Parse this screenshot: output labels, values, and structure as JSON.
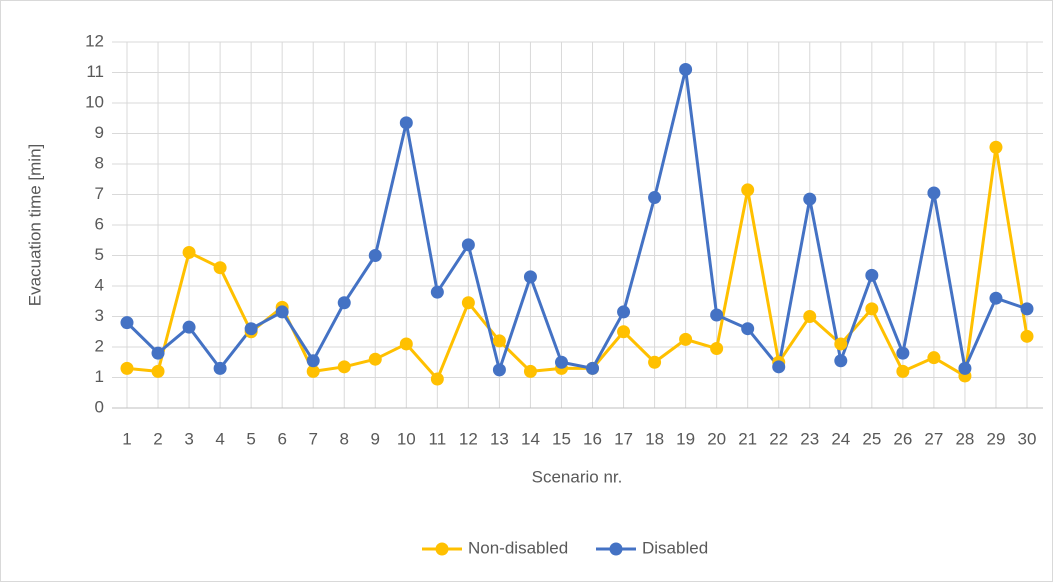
{
  "chart_data": {
    "type": "line",
    "x_label": "Scenario nr.",
    "y_label": "Evacuation time [min]",
    "categories": [
      "1",
      "2",
      "3",
      "4",
      "5",
      "6",
      "7",
      "8",
      "9",
      "10",
      "11",
      "12",
      "13",
      "14",
      "15",
      "16",
      "17",
      "18",
      "19",
      "20",
      "21",
      "22",
      "23",
      "24",
      "25",
      "26",
      "27",
      "28",
      "29",
      "30"
    ],
    "series": [
      {
        "name": "Non-disabled",
        "color": "#ffc000",
        "values": [
          1.3,
          1.2,
          5.1,
          4.6,
          2.5,
          3.3,
          1.2,
          1.35,
          1.6,
          2.1,
          0.95,
          3.45,
          2.2,
          1.2,
          1.3,
          1.3,
          2.5,
          1.5,
          2.25,
          1.95,
          7.15,
          1.5,
          3.0,
          2.1,
          3.25,
          1.2,
          1.65,
          1.05,
          8.55,
          2.35
        ]
      },
      {
        "name": "Disabled",
        "color": "#4472c4",
        "values": [
          2.8,
          1.8,
          2.65,
          1.3,
          2.6,
          3.15,
          1.55,
          3.45,
          5.0,
          9.35,
          3.8,
          5.35,
          1.25,
          4.3,
          1.5,
          1.3,
          3.15,
          6.9,
          11.1,
          3.05,
          2.6,
          1.35,
          6.85,
          1.55,
          4.35,
          1.8,
          7.05,
          1.3,
          3.6,
          3.25
        ]
      }
    ],
    "ylim": [
      0,
      12
    ],
    "yticks": [
      0,
      1,
      2,
      3,
      4,
      5,
      6,
      7,
      8,
      9,
      10,
      11,
      12
    ],
    "grid": true,
    "legend": "bottom"
  }
}
